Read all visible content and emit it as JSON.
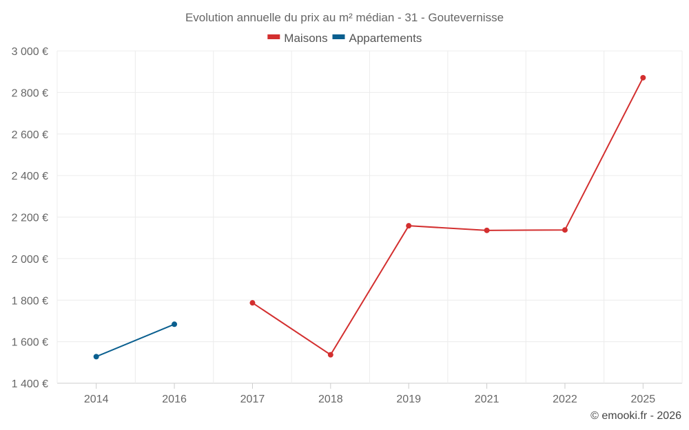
{
  "chart_data": {
    "type": "line",
    "title": "Evolution annuelle du prix au m² médian - 31 - Goutevernisse",
    "categories": [
      "2014",
      "2016",
      "2017",
      "2018",
      "2019",
      "2021",
      "2022",
      "2025"
    ],
    "series": [
      {
        "name": "Maisons",
        "color": "#d32f2f",
        "values": [
          null,
          null,
          1787,
          1537,
          2158,
          2136,
          2138,
          2871
        ]
      },
      {
        "name": "Appartements",
        "color": "#0a5f8f",
        "values": [
          1528,
          1684,
          null,
          null,
          null,
          null,
          null,
          null
        ]
      }
    ],
    "ylim": [
      1400,
      3000
    ],
    "yticks": [
      1400,
      1600,
      1800,
      2000,
      2200,
      2400,
      2600,
      2800,
      3000
    ],
    "ytick_labels": [
      "1 400 €",
      "1 600 €",
      "1 800 €",
      "2 000 €",
      "2 200 €",
      "2 400 €",
      "2 600 €",
      "2 800 €",
      "3 000 €"
    ],
    "grid": true,
    "legend_position": "top-center"
  },
  "credit": "© emooki.fr - 2026"
}
